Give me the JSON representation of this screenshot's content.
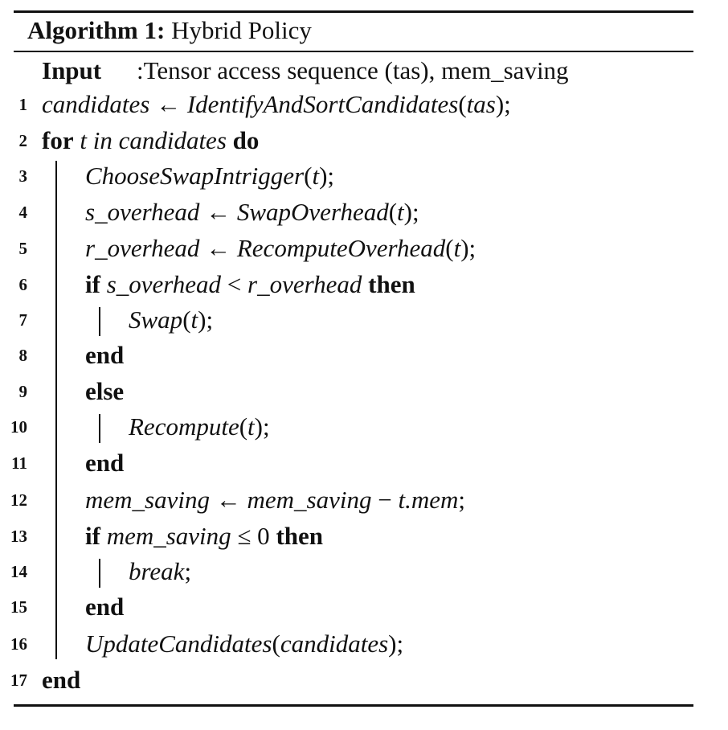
{
  "algorithm": {
    "label": "Algorithm 1:",
    "title": "Hybrid Policy",
    "input_keyword": "Input",
    "input_text": ":Tensor access sequence (tas), mem_saving"
  },
  "lines": [
    {
      "no": "1",
      "tokens": {
        "a": "candidates",
        "b": " ← ",
        "c": "IdentifyAndSortCandidates",
        "d": "(",
        "e": "tas",
        "f": ");"
      }
    },
    {
      "no": "2",
      "tokens": {
        "a": "for",
        "b": " t in candidates ",
        "c": "do"
      }
    },
    {
      "no": "3",
      "tokens": {
        "a": "ChooseSwapIntrigger",
        "b": "(",
        "c": "t",
        "d": ");"
      }
    },
    {
      "no": "4",
      "tokens": {
        "a": "s_overhead",
        "b": " ← ",
        "c": "SwapOverhead",
        "d": "(",
        "e": "t",
        "f": ");"
      }
    },
    {
      "no": "5",
      "tokens": {
        "a": "r_overhead",
        "b": " ← ",
        "c": "RecomputeOverhead",
        "d": "(",
        "e": "t",
        "f": ");"
      }
    },
    {
      "no": "6",
      "tokens": {
        "a": "if",
        "b": " s_overhead ",
        "c": "<",
        "d": " r_overhead ",
        "e": "then"
      }
    },
    {
      "no": "7",
      "tokens": {
        "a": "Swap",
        "b": "(",
        "c": "t",
        "d": ");"
      }
    },
    {
      "no": "8",
      "tokens": {
        "a": "end"
      }
    },
    {
      "no": "9",
      "tokens": {
        "a": "else"
      }
    },
    {
      "no": "10",
      "tokens": {
        "a": "Recompute",
        "b": "(",
        "c": "t",
        "d": ");"
      }
    },
    {
      "no": "11",
      "tokens": {
        "a": "end"
      }
    },
    {
      "no": "12",
      "tokens": {
        "a": "mem_saving",
        "b": " ← ",
        "c": "mem_saving",
        "d": " − ",
        "e": "t.mem",
        "f": ";"
      }
    },
    {
      "no": "13",
      "tokens": {
        "a": "if",
        "b": " mem_saving ",
        "c": "≤ 0 ",
        "d": "then"
      }
    },
    {
      "no": "14",
      "tokens": {
        "a": "break",
        "b": ";"
      }
    },
    {
      "no": "15",
      "tokens": {
        "a": "end"
      }
    },
    {
      "no": "16",
      "tokens": {
        "a": "UpdateCandidates",
        "b": "(",
        "c": "candidates",
        "d": ");"
      }
    },
    {
      "no": "17",
      "tokens": {
        "a": "end"
      }
    }
  ]
}
